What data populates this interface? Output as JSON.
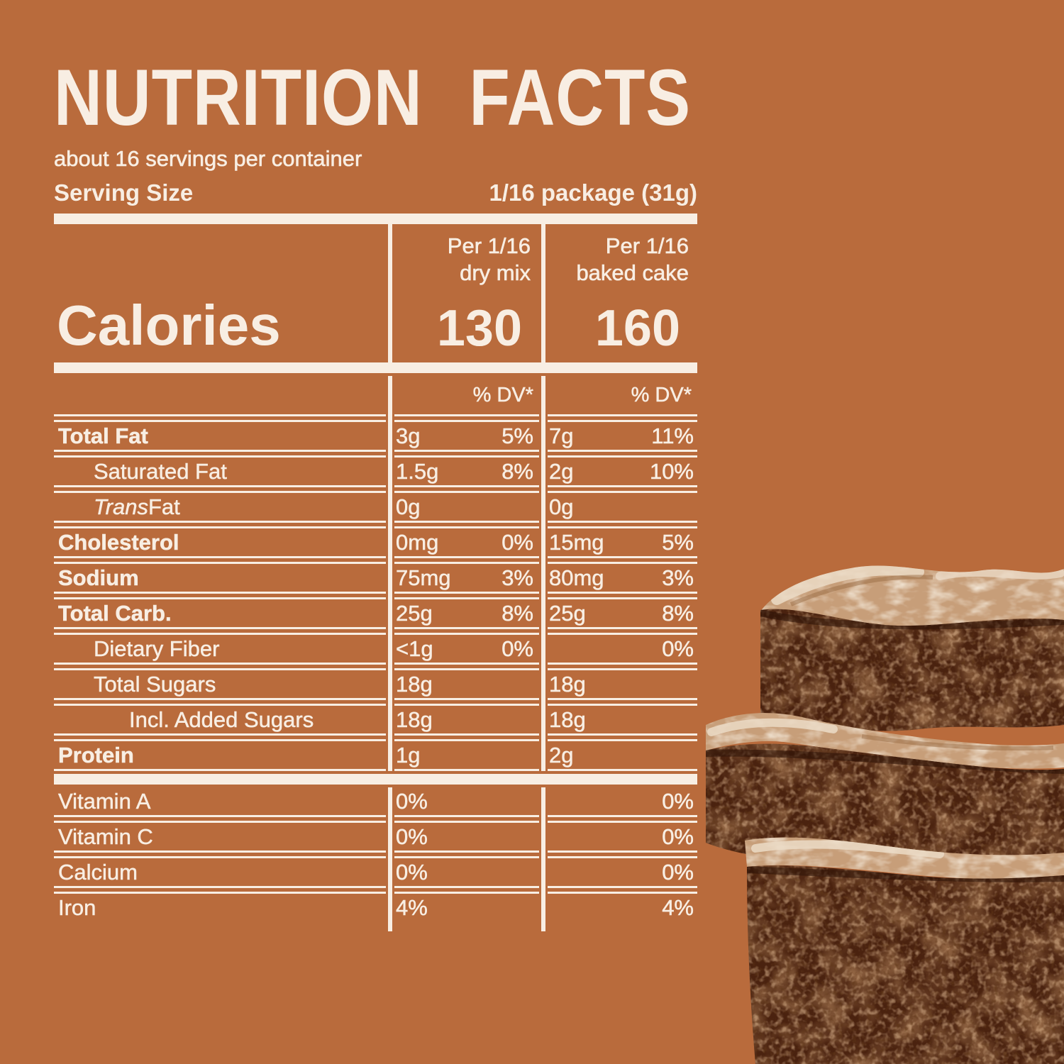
{
  "colors": {
    "background": "#B96B3C",
    "foreground": "#F8EEE3",
    "brownie_body": "#4A220F",
    "brownie_crust": "#C79E79",
    "brownie_crust_light": "#EBDAC6"
  },
  "header": {
    "title": "NUTRITION FACTS",
    "servings_per_container": "about 16 servings per container",
    "serving_size_label": "Serving Size",
    "serving_size_value": "1/16 package (31g)"
  },
  "columns": [
    {
      "line1": "Per 1/16",
      "line2": "dry mix"
    },
    {
      "line1": "Per 1/16",
      "line2": "baked cake"
    }
  ],
  "calories": {
    "label": "Calories",
    "dry_mix": "130",
    "baked_cake": "160"
  },
  "table": {
    "dv_header": "% DV*",
    "rows": [
      {
        "label": "Total Fat",
        "bold": true,
        "indent": 0,
        "dry": {
          "amount": "3g",
          "dv": "5%"
        },
        "baked": {
          "amount": "7g",
          "dv": "11%"
        }
      },
      {
        "label": "Saturated Fat",
        "bold": false,
        "indent": 1,
        "dry": {
          "amount": "1.5g",
          "dv": "8%"
        },
        "baked": {
          "amount": "2g",
          "dv": "10%"
        }
      },
      {
        "label": "Fat",
        "italic_prefix": "Trans",
        "bold": false,
        "indent": 1,
        "dry": {
          "amount": "0g",
          "dv": ""
        },
        "baked": {
          "amount": "0g",
          "dv": ""
        }
      },
      {
        "label": "Cholesterol",
        "bold": true,
        "indent": 0,
        "dry": {
          "amount": "0mg",
          "dv": "0%"
        },
        "baked": {
          "amount": "15mg",
          "dv": "5%"
        }
      },
      {
        "label": "Sodium",
        "bold": true,
        "indent": 0,
        "dry": {
          "amount": "75mg",
          "dv": "3%"
        },
        "baked": {
          "amount": "80mg",
          "dv": "3%"
        }
      },
      {
        "label": "Total Carb.",
        "bold": true,
        "indent": 0,
        "dry": {
          "amount": "25g",
          "dv": "8%"
        },
        "baked": {
          "amount": "25g",
          "dv": "8%"
        }
      },
      {
        "label": "Dietary Fiber",
        "bold": false,
        "indent": 1,
        "dry": {
          "amount": "<1g",
          "dv": "0%"
        },
        "baked": {
          "amount": "",
          "dv": "0%"
        }
      },
      {
        "label": "Total Sugars",
        "bold": false,
        "indent": 1,
        "dry": {
          "amount": "18g",
          "dv": ""
        },
        "baked": {
          "amount": "18g",
          "dv": ""
        }
      },
      {
        "label": "Incl. Added Sugars",
        "bold": false,
        "indent": 2,
        "dry": {
          "amount": "18g",
          "dv": ""
        },
        "baked": {
          "amount": "18g",
          "dv": ""
        }
      },
      {
        "label": "Protein",
        "bold": true,
        "indent": 0,
        "dry": {
          "amount": "1g",
          "dv": ""
        },
        "baked": {
          "amount": "2g",
          "dv": ""
        }
      }
    ],
    "micros": [
      {
        "label": "Vitamin A",
        "dry_dv": "0%",
        "baked_dv": "0%"
      },
      {
        "label": "Vitamin C",
        "dry_dv": "0%",
        "baked_dv": "0%"
      },
      {
        "label": "Calcium",
        "dry_dv": "0%",
        "baked_dv": "0%"
      },
      {
        "label": "Iron",
        "dry_dv": "4%",
        "baked_dv": "4%"
      }
    ]
  },
  "image": {
    "alt": "Stack of three chocolate fudge brownies"
  }
}
